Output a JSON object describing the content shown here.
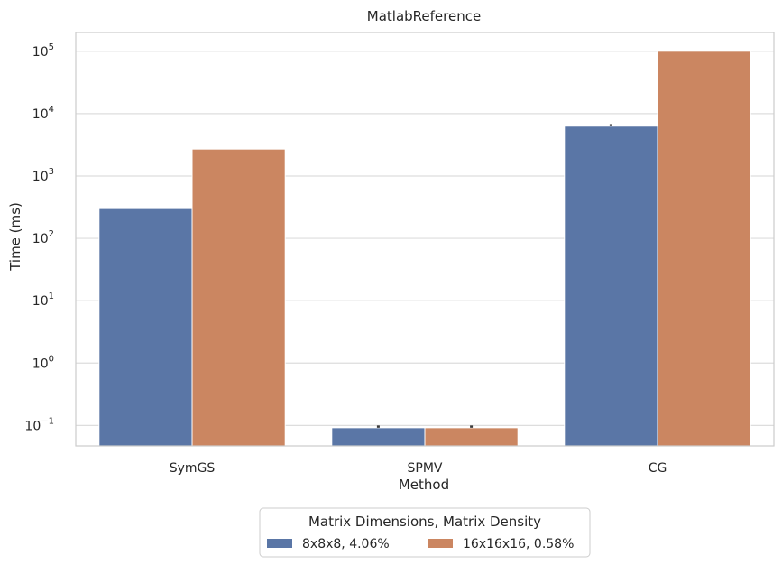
{
  "chart_data": {
    "type": "bar",
    "title": "MatlabReference",
    "xlabel": "Method",
    "ylabel": "Time (ms)",
    "yscale": "log",
    "ylim": [
      0.047,
      200000
    ],
    "yticks": [
      {
        "value": 0.1,
        "base": "10",
        "exp": "−1"
      },
      {
        "value": 1,
        "base": "10",
        "exp": "0"
      },
      {
        "value": 10,
        "base": "10",
        "exp": "1"
      },
      {
        "value": 100,
        "base": "10",
        "exp": "2"
      },
      {
        "value": 1000,
        "base": "10",
        "exp": "3"
      },
      {
        "value": 10000,
        "base": "10",
        "exp": "4"
      },
      {
        "value": 100000,
        "base": "10",
        "exp": "5"
      }
    ],
    "grid": true,
    "categories": [
      "SymGS",
      "SPMV",
      "CG"
    ],
    "legend": {
      "title": "Matrix Dimensions, Matrix Density",
      "placement": "bottom-center"
    },
    "series": [
      {
        "name": "8x8x8, 4.06%",
        "color": "#5a76a6",
        "values": [
          300,
          0.092,
          6300
        ],
        "error_high": [
          null,
          0.1,
          6800
        ]
      },
      {
        "name": "16x16x16, 0.58%",
        "color": "#cb8661",
        "values": [
          2700,
          0.092,
          100000
        ],
        "error_high": [
          null,
          0.1,
          null
        ]
      }
    ]
  }
}
